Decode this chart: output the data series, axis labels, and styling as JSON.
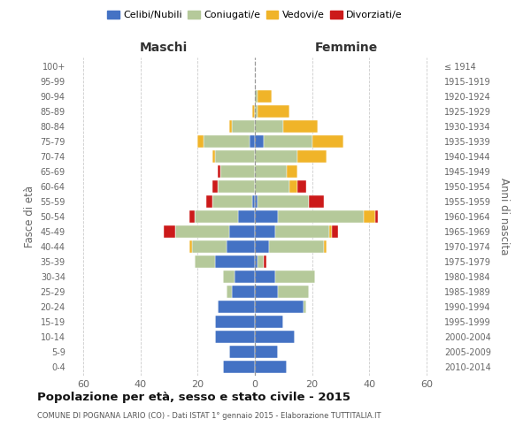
{
  "age_groups": [
    "0-4",
    "5-9",
    "10-14",
    "15-19",
    "20-24",
    "25-29",
    "30-34",
    "35-39",
    "40-44",
    "45-49",
    "50-54",
    "55-59",
    "60-64",
    "65-69",
    "70-74",
    "75-79",
    "80-84",
    "85-89",
    "90-94",
    "95-99",
    "100+"
  ],
  "birth_years": [
    "2010-2014",
    "2005-2009",
    "2000-2004",
    "1995-1999",
    "1990-1994",
    "1985-1989",
    "1980-1984",
    "1975-1979",
    "1970-1974",
    "1965-1969",
    "1960-1964",
    "1955-1959",
    "1950-1954",
    "1945-1949",
    "1940-1944",
    "1935-1939",
    "1930-1934",
    "1925-1929",
    "1920-1924",
    "1915-1919",
    "≤ 1914"
  ],
  "male": {
    "celibi": [
      11,
      9,
      14,
      14,
      13,
      8,
      7,
      14,
      10,
      9,
      6,
      1,
      0,
      0,
      0,
      2,
      0,
      0,
      0,
      0,
      0
    ],
    "coniugati": [
      0,
      0,
      0,
      0,
      0,
      2,
      4,
      7,
      12,
      19,
      15,
      14,
      13,
      12,
      14,
      16,
      8,
      0,
      0,
      0,
      0
    ],
    "vedovi": [
      0,
      0,
      0,
      0,
      0,
      0,
      0,
      0,
      1,
      0,
      0,
      0,
      0,
      0,
      1,
      2,
      1,
      1,
      0,
      0,
      0
    ],
    "divorziati": [
      0,
      0,
      0,
      0,
      0,
      0,
      0,
      0,
      0,
      4,
      2,
      2,
      2,
      1,
      0,
      0,
      0,
      0,
      0,
      0,
      0
    ]
  },
  "female": {
    "nubili": [
      11,
      8,
      14,
      10,
      17,
      8,
      7,
      1,
      5,
      7,
      8,
      1,
      0,
      0,
      0,
      3,
      0,
      0,
      0,
      0,
      0
    ],
    "coniugate": [
      0,
      0,
      0,
      0,
      1,
      11,
      14,
      2,
      19,
      19,
      30,
      18,
      12,
      11,
      15,
      17,
      10,
      1,
      1,
      0,
      0
    ],
    "vedove": [
      0,
      0,
      0,
      0,
      0,
      0,
      0,
      0,
      1,
      1,
      4,
      0,
      3,
      4,
      10,
      11,
      12,
      11,
      5,
      0,
      0
    ],
    "divorziate": [
      0,
      0,
      0,
      0,
      0,
      0,
      0,
      1,
      0,
      2,
      1,
      5,
      3,
      0,
      0,
      0,
      0,
      0,
      0,
      0,
      0
    ]
  },
  "colors": {
    "celibi_nubili": "#4472C4",
    "coniugati": "#b5c99a",
    "vedovi": "#f0b429",
    "divorziati": "#cc1a1a"
  },
  "xlim": 65,
  "xticks": [
    -60,
    -40,
    -20,
    0,
    20,
    40,
    60
  ],
  "xticklabels": [
    "60",
    "40",
    "20",
    "0",
    "20",
    "40",
    "60"
  ],
  "title": "Popolazione per età, sesso e stato civile - 2015",
  "subtitle": "COMUNE DI POGNANA LARIO (CO) - Dati ISTAT 1° gennaio 2015 - Elaborazione TUTTITALIA.IT",
  "ylabel_left": "Fasce di età",
  "ylabel_right": "Anni di nascita",
  "xlabel_maschi": "Maschi",
  "xlabel_femmine": "Femmine",
  "legend_labels": [
    "Celibi/Nubili",
    "Coniugati/e",
    "Vedovi/e",
    "Divorziati/e"
  ],
  "bg_color": "#ffffff",
  "grid_color": "#cccccc",
  "text_color": "#666666"
}
